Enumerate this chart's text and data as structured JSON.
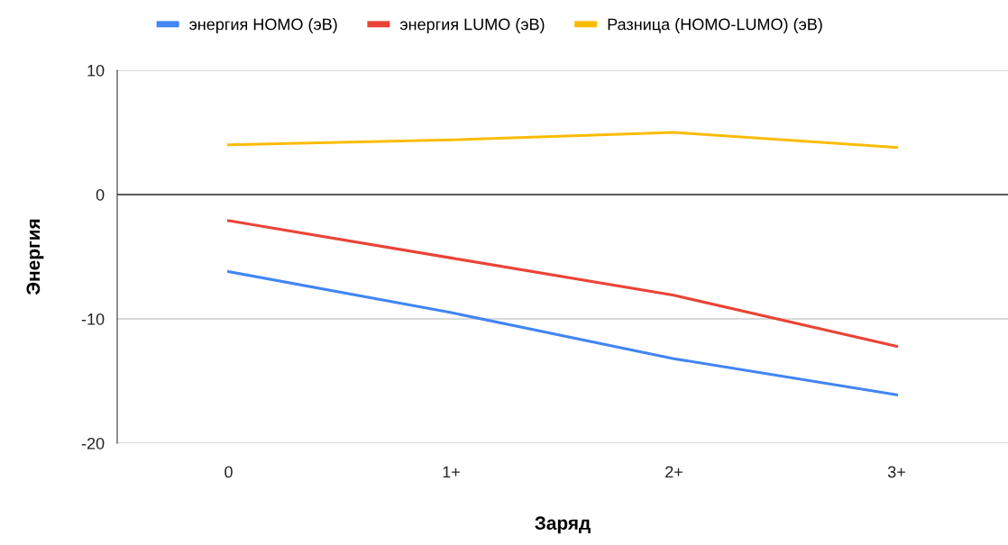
{
  "chart_data": {
    "type": "line",
    "xlabel": "Заряд",
    "ylabel": "Энергия",
    "categories": [
      "0",
      "1+",
      "2+",
      "3+"
    ],
    "series": [
      {
        "name": "энергия HOMO (эВ)",
        "color": "#4285f4",
        "values": [
          -6.2,
          -9.5,
          -13.2,
          -16.1
        ]
      },
      {
        "name": "энергия LUMO (эВ)",
        "color": "#ea4335",
        "values": [
          -2.1,
          -5.1,
          -8.1,
          -12.2
        ]
      },
      {
        "name": "Разница (HOMO-LUMO) (эВ)",
        "color": "#fbbc04",
        "values": [
          4.0,
          4.4,
          5.0,
          3.8
        ]
      }
    ],
    "ylim": [
      -20,
      10
    ],
    "yticks": [
      -20,
      -10,
      0,
      10
    ],
    "grid": "y",
    "legend": "top",
    "ref_lines": [
      {
        "axis": "y",
        "value": 0,
        "color": "#333333"
      }
    ]
  }
}
